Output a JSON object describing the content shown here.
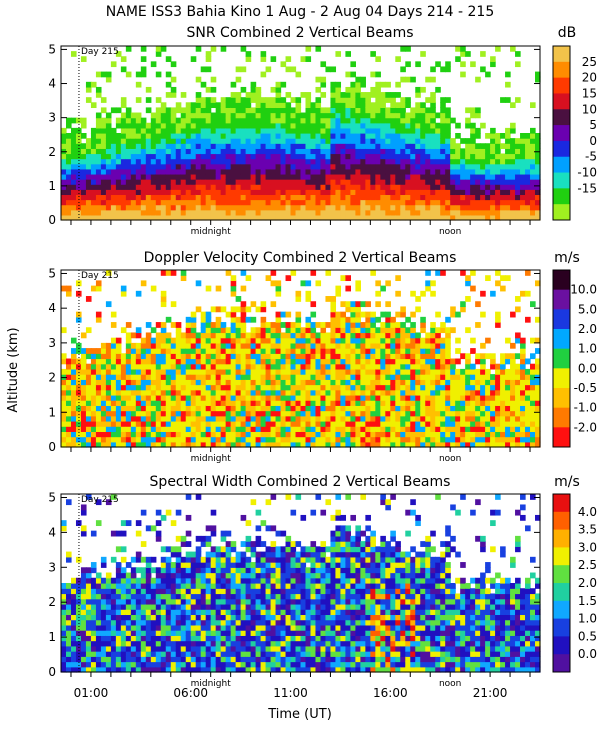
{
  "header": {
    "title": "NAME ISS3 Bahia Kino    1 Aug -  2 Aug 04 Days 214 - 215"
  },
  "xaxis": {
    "label": "Time (UT)",
    "ticks": [
      "01:00",
      "06:00",
      "11:00",
      "16:00",
      "21:00"
    ],
    "tick_hours": [
      1,
      6,
      11,
      16,
      21
    ],
    "range_hours": [
      -0.5,
      23.5
    ],
    "midnight_label": "midnight",
    "midnight_hour": 7,
    "noon_label": "noon",
    "noon_hour": 19
  },
  "yaxis": {
    "label": "Altitude (km)",
    "ticks": [
      "0",
      "1",
      "2",
      "3",
      "4",
      "5"
    ],
    "range_km": [
      0,
      5.1
    ]
  },
  "day_marker": {
    "label": "Day 215",
    "hour": 0.4
  },
  "chart_data": [
    {
      "type": "heatmap",
      "title": "SNR Combined 2 Vertical Beams",
      "unit": "dB",
      "colorbar": {
        "labels": [
          "25",
          "20",
          "15",
          "10",
          "5",
          "0",
          "-5",
          "-10",
          "-15"
        ],
        "colors": [
          "#f2c34a",
          "#ff8c00",
          "#ff3a00",
          "#d81020",
          "#4a1040",
          "#6a00b0",
          "#1a28e0",
          "#00a0ff",
          "#19e0c0",
          "#20d010",
          "#a0f020"
        ]
      },
      "description_points": [
        {
          "x": 0,
          "y": 0.3,
          "v": 25
        },
        {
          "x": 12,
          "y": 1.2,
          "v": 5
        },
        {
          "x": 16,
          "y": 2.5,
          "v": 5
        },
        {
          "x": 20,
          "y": 3.8,
          "v": -15
        }
      ]
    },
    {
      "type": "heatmap",
      "title": "Doppler Velocity Combined 2 Vertical Beams",
      "unit": "m/s",
      "colorbar": {
        "labels": [
          "10.0",
          "5.0",
          "2.0",
          "1.0",
          "0.0",
          "-0.5",
          "-1.0",
          "-2.0"
        ],
        "colors": [
          "#2a0020",
          "#6a10a0",
          "#1a38e0",
          "#00a8ff",
          "#20d040",
          "#f0f000",
          "#ffc000",
          "#ff7a00",
          "#ff1010"
        ]
      },
      "description_points": [
        {
          "x": 5,
          "y": 1.0,
          "v": -0.5
        },
        {
          "x": 16,
          "y": 2.0,
          "v": 0.0
        }
      ]
    },
    {
      "type": "heatmap",
      "title": "Spectral Width Combined 2 Vertical Beams",
      "unit": "m/s",
      "colorbar": {
        "labels": [
          "4.0",
          "3.5",
          "3.0",
          "2.5",
          "2.0",
          "1.5",
          "1.0",
          "0.5",
          "0.0"
        ],
        "colors": [
          "#e81010",
          "#ff6000",
          "#ffb000",
          "#f0f000",
          "#60e040",
          "#20d0a0",
          "#10a8ff",
          "#1840e0",
          "#2010c0",
          "#5010a0"
        ]
      },
      "description_points": [
        {
          "x": 5,
          "y": 1.0,
          "v": 1.0
        },
        {
          "x": 16,
          "y": 2.0,
          "v": 3.0
        }
      ]
    }
  ]
}
